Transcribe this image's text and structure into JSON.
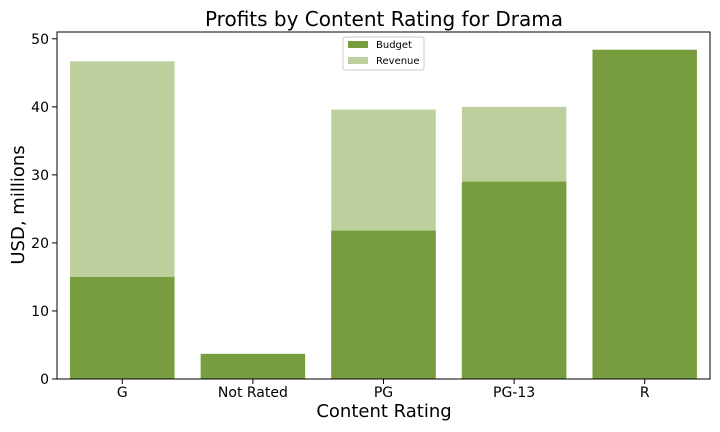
{
  "chart_data": {
    "type": "bar",
    "title": "Profits by Content Rating for Drama",
    "xlabel": "Content Rating",
    "ylabel": "USD, millions",
    "categories": [
      "G",
      "Not Rated",
      "PG",
      "PG-13",
      "R"
    ],
    "series": [
      {
        "name": "Budget",
        "values": [
          15.0,
          3.7,
          21.8,
          29.0,
          48.4
        ],
        "color": "#779d3f"
      },
      {
        "name": "Revenue",
        "values": [
          46.7,
          0,
          39.6,
          40.0,
          0
        ],
        "color": "#bccf9d"
      }
    ],
    "ylim": [
      0,
      51
    ],
    "yticks": [
      0,
      10,
      20,
      30,
      40,
      50
    ],
    "grid": false,
    "legend_position": "top-center"
  }
}
